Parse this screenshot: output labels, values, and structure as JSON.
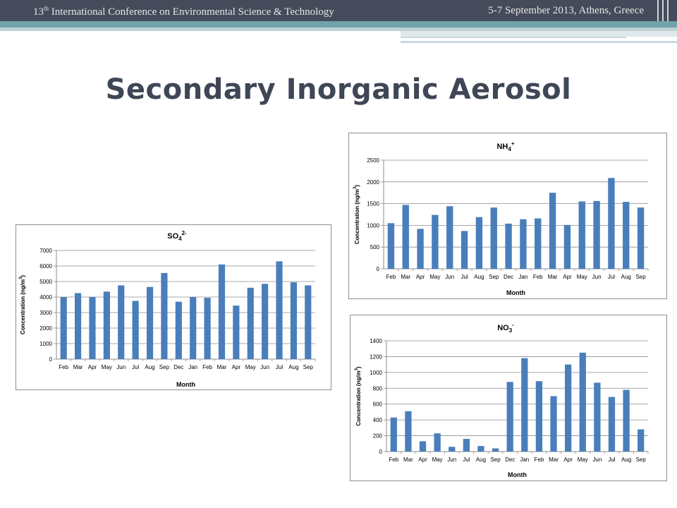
{
  "header": {
    "conference_num": "13",
    "conference_sup": "th",
    "conference_rest": " International Conference on Environmental Science & Technology",
    "dates": "5-7 September 2013, Athens, Greece"
  },
  "slide": {
    "title": "Secondary Inorganic Aerosol"
  },
  "chart_data": [
    {
      "id": "so4",
      "type": "bar",
      "title": "SO4 2-",
      "title_base": "SO",
      "title_sub": "4",
      "title_sup": "2-",
      "xlabel": "Month",
      "ylabel_main": "Concentration (ng/m",
      "ylabel_sup": "3",
      "ylabel_end": ")",
      "categories": [
        "Feb",
        "Mar",
        "Apr",
        "May",
        "Jun",
        "Jul",
        "Aug",
        "Sep",
        "Dec",
        "Jan",
        "Feb",
        "Mar",
        "Apr",
        "May",
        "Jun",
        "Jul",
        "Aug",
        "Sep"
      ],
      "values": [
        4000,
        4250,
        4000,
        4350,
        4750,
        3750,
        4650,
        5550,
        3700,
        4000,
        3950,
        6100,
        3450,
        4600,
        4850,
        6300,
        4950,
        4750
      ],
      "ylim": [
        0,
        7000
      ],
      "yticks": [
        0,
        1000,
        2000,
        3000,
        4000,
        5000,
        6000,
        7000
      ],
      "grid": true,
      "color": "#4a7ebb"
    },
    {
      "id": "nh4",
      "type": "bar",
      "title": "NH4 +",
      "title_base": "NH",
      "title_sub": "4",
      "title_sup": "+",
      "xlabel": "Month",
      "ylabel_main": "Concentration (ng/m",
      "ylabel_sup": "3",
      "ylabel_end": ")",
      "categories": [
        "Feb",
        "Mar",
        "Apr",
        "May",
        "Jun",
        "Jul",
        "Aug",
        "Sep",
        "Dec",
        "Jan",
        "Feb",
        "Mar",
        "Apr",
        "May",
        "Jun",
        "Jul",
        "Aug",
        "Sep"
      ],
      "values": [
        1050,
        1470,
        920,
        1240,
        1440,
        870,
        1190,
        1410,
        1040,
        1140,
        1160,
        1750,
        1010,
        1550,
        1560,
        2090,
        1540,
        1410
      ],
      "ylim": [
        0,
        2500
      ],
      "yticks": [
        0,
        500,
        1000,
        1500,
        2000,
        2500
      ],
      "grid": true,
      "color": "#4a7ebb"
    },
    {
      "id": "no3",
      "type": "bar",
      "title": "NO3 -",
      "title_base": "NO",
      "title_sub": "3",
      "title_sup": "-",
      "xlabel": "Month",
      "ylabel_main": "Concentration (ng/m",
      "ylabel_sup": "3",
      "ylabel_end": ")",
      "categories": [
        "Feb",
        "Mar",
        "Apr",
        "May",
        "Jun",
        "Jul",
        "Aug",
        "Sep",
        "Dec",
        "Jan",
        "Feb",
        "Mar",
        "Apr",
        "May",
        "Jun",
        "Jul",
        "Aug",
        "Sep"
      ],
      "values": [
        430,
        510,
        130,
        230,
        60,
        160,
        70,
        40,
        880,
        1180,
        890,
        700,
        1100,
        1250,
        870,
        690,
        780,
        280
      ],
      "ylim": [
        0,
        1400
      ],
      "yticks": [
        0,
        200,
        400,
        600,
        800,
        1000,
        1200,
        1400
      ],
      "grid": true,
      "color": "#4a7ebb"
    }
  ]
}
